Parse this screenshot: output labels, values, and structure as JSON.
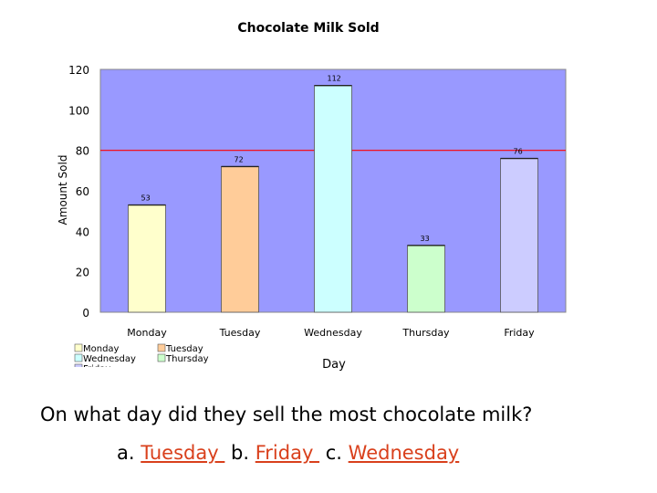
{
  "chart_data": {
    "type": "bar",
    "title": "Chocolate Milk Sold",
    "xlabel": "Day",
    "ylabel": "Amount Sold",
    "categories": [
      "Monday",
      "Tuesday",
      "Wednesday",
      "Thursday",
      "Friday"
    ],
    "values": [
      53,
      72,
      112,
      33,
      76
    ],
    "data_labels": [
      "53",
      "72",
      "112",
      "33",
      "76"
    ],
    "colors": [
      "#ffffcc",
      "#ffcc99",
      "#ccffff",
      "#ccffcc",
      "#ccccff"
    ],
    "ylim": [
      0,
      120
    ],
    "yticks": [
      0,
      20,
      40,
      60,
      80,
      100,
      120
    ],
    "reference_line": {
      "value": 80,
      "color": "#ff0000"
    },
    "plot_background": "#9999ff",
    "grid": false,
    "legend": {
      "placement": "bottom-left",
      "items": [
        "Monday",
        "Tuesday",
        "Wednesday",
        "Thursday",
        "Friday"
      ]
    }
  },
  "question": {
    "text": "On what day did they sell the most chocolate milk?",
    "options": [
      {
        "prefix": "a. ",
        "answer": "Tuesday "
      },
      {
        "prefix": "b. ",
        "answer": "Friday "
      },
      {
        "prefix": "c. ",
        "answer": "Wednesday"
      }
    ]
  }
}
